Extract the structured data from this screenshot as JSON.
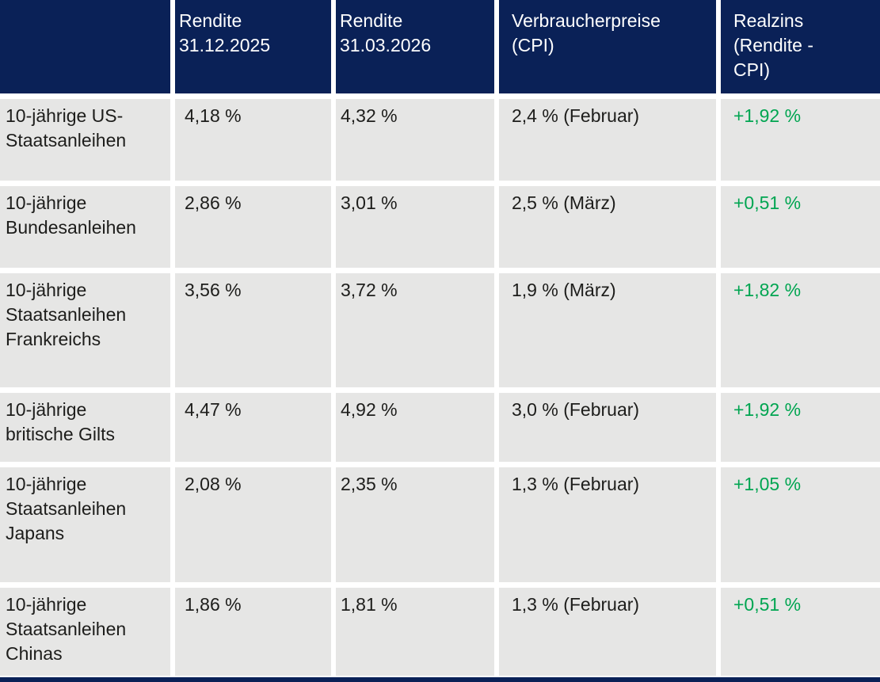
{
  "chart_data": {
    "type": "table",
    "columns": [
      "",
      "Rendite\n31.12.2025",
      "Rendite\n31.03.2026",
      "Verbraucherpreise\n(CPI)",
      "Realzins\n(Rendite -\nCPI)"
    ],
    "rows": [
      [
        "10-jährige US-\nStaatsanleihen",
        "4,18 %",
        "4,32 %",
        "2,4 % (Februar)",
        "+1,92 %"
      ],
      [
        "10-jährige\nBundesanleihen",
        "2,86 %",
        "3,01 %",
        "2,5 % (März)",
        "+0,51 %"
      ],
      [
        "10-jährige\nStaatsanleihen\nFrankreichs",
        "3,56 %",
        "3,72 %",
        "1,9 % (März)",
        "+1,82 %"
      ],
      [
        "10-jährige\nbritische Gilts",
        "4,47 %",
        "4,92 %",
        "3,0 % (Februar)",
        "+1,92 %"
      ],
      [
        "10-jährige\nStaatsanleihen\nJapans",
        "2,08 %",
        "2,35 %",
        "1,3 % (Februar)",
        "+1,05 %"
      ],
      [
        "10-jährige\nStaatsanleihen\nChinas",
        "1,86 %",
        "1,81 %",
        "1,3 % (Februar)",
        "+0,51 %"
      ]
    ]
  },
  "colors": {
    "header_bg": "#0a2157",
    "header_text": "#ffffff",
    "row_bg": "#e6e6e5",
    "body_text": "#1d1d1b",
    "positive_green": "#00a551"
  }
}
